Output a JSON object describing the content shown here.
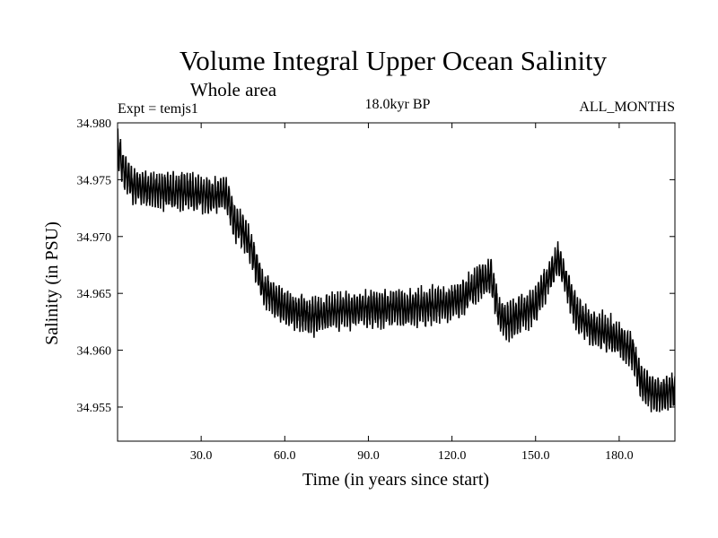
{
  "chart_data": {
    "type": "line",
    "title": "Volume Integral Upper Ocean Salinity",
    "subtitle": "Whole area",
    "annotations": {
      "experiment": "Expt = temjs1",
      "period": "18.0kyr BP",
      "months": "ALL_MONTHS"
    },
    "xlabel": "Time (in years since start)",
    "ylabel": "Salinity (in PSU)",
    "xlim": [
      0,
      200
    ],
    "ylim": [
      34.952,
      34.98
    ],
    "x_ticks": [
      30,
      60,
      90,
      120,
      150,
      180
    ],
    "x_tick_labels": [
      "30.0",
      "60.0",
      "90.0",
      "120.0",
      "150.0",
      "180.0"
    ],
    "y_ticks": [
      34.955,
      34.96,
      34.965,
      34.97,
      34.975,
      34.98
    ],
    "y_tick_labels": [
      "34.955",
      "34.960",
      "34.965",
      "34.970",
      "34.975",
      "34.980"
    ],
    "series": [
      {
        "name": "salinity",
        "sampling": "monthly",
        "trend_x": [
          0,
          2,
          5,
          10,
          20,
          30,
          35,
          38,
          40,
          42,
          45,
          48,
          52,
          60,
          70,
          80,
          90,
          100,
          110,
          120,
          125,
          130,
          134,
          137,
          140,
          145,
          150,
          155,
          158,
          160,
          165,
          170,
          175,
          180,
          185,
          188,
          192,
          196,
          200
        ],
        "trend_y": [
          34.978,
          34.976,
          34.9745,
          34.9742,
          34.974,
          34.9738,
          34.9735,
          34.974,
          34.973,
          34.9712,
          34.9705,
          34.969,
          34.9655,
          34.9637,
          34.963,
          34.9635,
          34.9636,
          34.9637,
          34.9638,
          34.9642,
          34.9648,
          34.966,
          34.9665,
          34.963,
          34.9625,
          34.9632,
          34.964,
          34.9665,
          34.968,
          34.9668,
          34.963,
          34.962,
          34.9615,
          34.961,
          34.9598,
          34.957,
          34.9563,
          34.956,
          34.9565
        ],
        "monthly_amplitude": 0.0014
      }
    ]
  }
}
